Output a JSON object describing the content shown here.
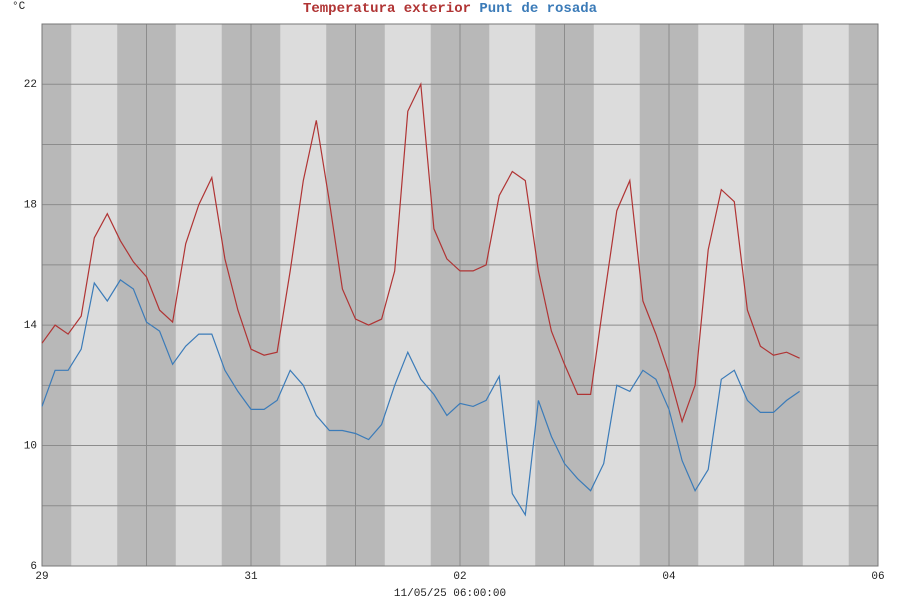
{
  "chart_data": {
    "type": "line",
    "y_label": "°C",
    "x_label": "11/05/25 06:00:00",
    "x": [
      0,
      0.125,
      0.25,
      0.375,
      0.5,
      0.625,
      0.75,
      0.875,
      1,
      1.125,
      1.25,
      1.375,
      1.5,
      1.625,
      1.75,
      1.875,
      2,
      2.125,
      2.25,
      2.375,
      2.5,
      2.625,
      2.75,
      2.875,
      3,
      3.125,
      3.25,
      3.375,
      3.5,
      3.625,
      3.75,
      3.875,
      4,
      4.125,
      4.25,
      4.375,
      4.5,
      4.625,
      4.75,
      4.875,
      5,
      5.125,
      5.25,
      5.375,
      5.5,
      5.625,
      5.75,
      5.875,
      6,
      6.125,
      6.25,
      6.375,
      6.5,
      6.625,
      6.75,
      6.875,
      7,
      7.125,
      7.25
    ],
    "series": [
      {
        "name": "Temperatura exterior",
        "color": "#b03434",
        "values": [
          13.4,
          14.0,
          13.7,
          14.3,
          16.9,
          17.7,
          16.8,
          16.1,
          15.6,
          14.5,
          14.1,
          16.7,
          18.0,
          18.9,
          16.2,
          14.5,
          13.2,
          13.0,
          13.1,
          15.8,
          18.8,
          20.8,
          18.1,
          15.2,
          14.2,
          14.0,
          14.2,
          15.8,
          21.1,
          22.0,
          17.2,
          16.2,
          15.8,
          15.8,
          16.0,
          18.3,
          19.1,
          18.8,
          15.8,
          13.8,
          12.7,
          11.7,
          11.7,
          14.8,
          17.8,
          18.8,
          14.8,
          13.7,
          12.4,
          10.8,
          12.0,
          16.5,
          18.5,
          18.1,
          14.5,
          13.3,
          13.0,
          13.1,
          12.9
        ]
      },
      {
        "name": "Punt de rosada",
        "color": "#3b7bb8",
        "values": [
          11.3,
          12.5,
          12.5,
          13.2,
          15.4,
          14.8,
          15.5,
          15.2,
          14.1,
          13.8,
          12.7,
          13.3,
          13.7,
          13.7,
          12.5,
          11.8,
          11.2,
          11.2,
          11.5,
          12.5,
          12.0,
          11.0,
          10.5,
          10.5,
          10.4,
          10.2,
          10.7,
          12.0,
          13.1,
          12.2,
          11.7,
          11.0,
          11.4,
          11.3,
          11.5,
          12.3,
          8.4,
          7.7,
          11.5,
          10.3,
          9.4,
          8.9,
          8.5,
          9.4,
          12.0,
          11.8,
          12.5,
          12.2,
          11.2,
          9.5,
          8.5,
          9.2,
          12.2,
          12.5,
          11.5,
          11.1,
          11.1,
          11.5,
          11.8
        ]
      }
    ],
    "xlim": [
      0,
      8
    ],
    "xticks": [
      {
        "value": 0,
        "label": "29"
      },
      {
        "value": 2,
        "label": "31"
      },
      {
        "value": 4,
        "label": "02"
      },
      {
        "value": 6,
        "label": "04"
      },
      {
        "value": 8,
        "label": "06"
      }
    ],
    "x_minor_ticks": [
      1,
      3,
      5,
      7
    ],
    "ylim": [
      6,
      24
    ],
    "yticks": [
      6,
      10,
      14,
      18,
      22
    ],
    "y_minor_ticks": [
      8,
      12,
      16,
      20,
      24
    ],
    "grid": true
  }
}
